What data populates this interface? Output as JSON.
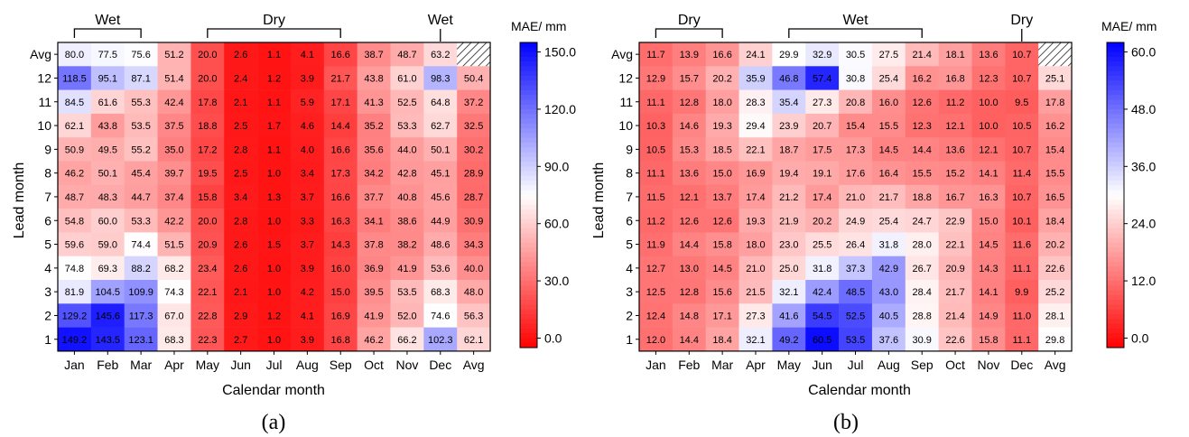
{
  "chart_data": [
    {
      "type": "heatmap",
      "panel_label": "(a)",
      "xlabel": "Calendar month",
      "ylabel": "Lead month",
      "x_categories": [
        "Jan",
        "Feb",
        "Mar",
        "Apr",
        "May",
        "Jun",
        "Jul",
        "Aug",
        "Sep",
        "Oct",
        "Nov",
        "Dec",
        "Avg"
      ],
      "y_categories": [
        "Avg",
        "12",
        "11",
        "10",
        "9",
        "8",
        "7",
        "6",
        "5",
        "4",
        "3",
        "2",
        "1"
      ],
      "values": [
        [
          80.0,
          77.5,
          75.6,
          51.2,
          20.0,
          2.6,
          1.1,
          4.1,
          16.6,
          38.7,
          48.7,
          63.2,
          null
        ],
        [
          118.5,
          95.1,
          87.1,
          51.4,
          20.0,
          2.4,
          1.2,
          3.9,
          21.7,
          43.8,
          61.0,
          98.3,
          50.4
        ],
        [
          84.5,
          61.6,
          55.3,
          42.4,
          17.8,
          2.1,
          1.1,
          5.9,
          17.1,
          41.3,
          52.5,
          64.8,
          37.2
        ],
        [
          62.1,
          43.8,
          53.5,
          37.5,
          18.8,
          2.5,
          1.7,
          4.6,
          14.4,
          35.2,
          53.3,
          62.7,
          32.5
        ],
        [
          50.9,
          49.5,
          55.2,
          35.0,
          17.2,
          2.8,
          1.1,
          4.0,
          16.6,
          35.6,
          44.0,
          50.1,
          30.2
        ],
        [
          46.2,
          50.1,
          45.4,
          39.7,
          19.5,
          2.5,
          1.0,
          3.4,
          17.3,
          34.2,
          42.8,
          45.1,
          28.9
        ],
        [
          48.7,
          48.3,
          44.7,
          37.4,
          15.8,
          3.4,
          1.3,
          3.7,
          16.6,
          37.7,
          40.8,
          45.6,
          28.7
        ],
        [
          54.8,
          60.0,
          53.3,
          42.2,
          20.0,
          2.8,
          1.0,
          3.3,
          16.3,
          34.1,
          38.6,
          44.9,
          30.9
        ],
        [
          59.6,
          59.0,
          74.4,
          51.5,
          20.9,
          2.6,
          1.5,
          3.7,
          14.3,
          37.8,
          38.2,
          48.6,
          34.3
        ],
        [
          74.8,
          69.3,
          88.2,
          68.2,
          23.4,
          2.6,
          1.0,
          3.9,
          16.0,
          36.9,
          41.9,
          53.6,
          40.0
        ],
        [
          81.9,
          104.5,
          109.9,
          74.3,
          22.1,
          2.1,
          1.0,
          4.2,
          15.0,
          39.5,
          53.5,
          68.3,
          48.0
        ],
        [
          129.2,
          145.6,
          117.3,
          67.0,
          22.8,
          2.9,
          1.2,
          4.1,
          16.9,
          41.9,
          52.0,
          74.6,
          56.3
        ],
        [
          149.2,
          143.5,
          123.1,
          68.3,
          22.3,
          2.7,
          1.0,
          3.9,
          16.8,
          46.2,
          66.2,
          102.3,
          62.1
        ]
      ],
      "colorbar": {
        "title": "MAE/ mm",
        "ticks": [
          "150.0",
          "120.0",
          "90.0",
          "60.0",
          "30.0",
          "0.0"
        ],
        "min": -5,
        "max": 155,
        "white_at": 75
      },
      "season_labels": [
        {
          "text": "Wet",
          "type": "bracket",
          "from": 0,
          "to": 2
        },
        {
          "text": "Dry",
          "type": "bracket",
          "from": 4,
          "to": 8
        },
        {
          "text": "Wet",
          "type": "tick",
          "at": 11
        }
      ]
    },
    {
      "type": "heatmap",
      "panel_label": "(b)",
      "xlabel": "Calendar month",
      "ylabel": "Lead month",
      "x_categories": [
        "Jan",
        "Feb",
        "Mar",
        "Apr",
        "May",
        "Jun",
        "Jul",
        "Aug",
        "Sep",
        "Oct",
        "Nov",
        "Dec",
        "Avg"
      ],
      "y_categories": [
        "Avg",
        "12",
        "11",
        "10",
        "9",
        "8",
        "7",
        "6",
        "5",
        "4",
        "3",
        "2",
        "1"
      ],
      "values": [
        [
          11.7,
          13.9,
          16.6,
          24.1,
          29.9,
          32.9,
          30.5,
          27.5,
          21.4,
          18.1,
          13.6,
          10.7,
          null
        ],
        [
          12.9,
          15.7,
          20.2,
          35.9,
          46.8,
          57.4,
          30.8,
          25.4,
          16.2,
          16.8,
          12.3,
          10.7,
          25.1
        ],
        [
          11.1,
          12.8,
          18.0,
          28.3,
          35.4,
          27.3,
          20.8,
          16.0,
          12.6,
          11.2,
          10.0,
          9.5,
          17.8
        ],
        [
          10.3,
          14.6,
          19.3,
          29.4,
          23.9,
          20.7,
          15.4,
          15.5,
          12.3,
          12.1,
          10.0,
          10.5,
          16.2
        ],
        [
          10.5,
          15.3,
          18.5,
          22.1,
          18.7,
          17.5,
          17.3,
          14.5,
          14.4,
          13.6,
          12.1,
          10.7,
          15.4
        ],
        [
          11.1,
          13.6,
          15.0,
          16.9,
          19.4,
          19.1,
          17.6,
          16.4,
          15.5,
          15.2,
          14.1,
          11.4,
          15.5
        ],
        [
          11.5,
          12.1,
          13.7,
          17.4,
          21.2,
          17.4,
          21.0,
          21.7,
          18.8,
          16.7,
          16.3,
          10.7,
          16.5
        ],
        [
          11.2,
          12.6,
          12.6,
          19.3,
          21.9,
          20.2,
          24.9,
          25.4,
          24.7,
          22.9,
          15.0,
          10.1,
          18.4
        ],
        [
          11.9,
          14.4,
          15.8,
          18.0,
          23.0,
          25.5,
          26.4,
          31.8,
          28.0,
          22.1,
          14.5,
          11.6,
          20.2
        ],
        [
          12.7,
          13.0,
          14.5,
          21.0,
          25.0,
          31.8,
          37.3,
          42.9,
          26.7,
          20.9,
          14.3,
          11.1,
          22.6
        ],
        [
          12.5,
          12.8,
          15.6,
          21.5,
          32.1,
          42.4,
          48.5,
          43.0,
          28.4,
          21.7,
          14.1,
          9.9,
          25.2
        ],
        [
          12.4,
          14.8,
          17.1,
          27.3,
          41.6,
          54.5,
          52.5,
          40.5,
          28.8,
          21.4,
          14.9,
          11.0,
          28.1
        ],
        [
          12.0,
          14.4,
          18.4,
          32.1,
          49.2,
          60.5,
          53.5,
          37.6,
          30.9,
          22.6,
          15.8,
          11.1,
          29.8
        ]
      ],
      "colorbar": {
        "title": "MAE/ mm",
        "ticks": [
          "60.0",
          "48.0",
          "36.0",
          "24.0",
          "12.0",
          "0.0"
        ],
        "min": -2,
        "max": 62,
        "white_at": 30
      },
      "season_labels": [
        {
          "text": "Dry",
          "type": "bracket",
          "from": 0,
          "to": 2
        },
        {
          "text": "Wet",
          "type": "bracket",
          "from": 4,
          "to": 8
        },
        {
          "text": "Dry",
          "type": "tick",
          "at": 11
        }
      ]
    }
  ]
}
